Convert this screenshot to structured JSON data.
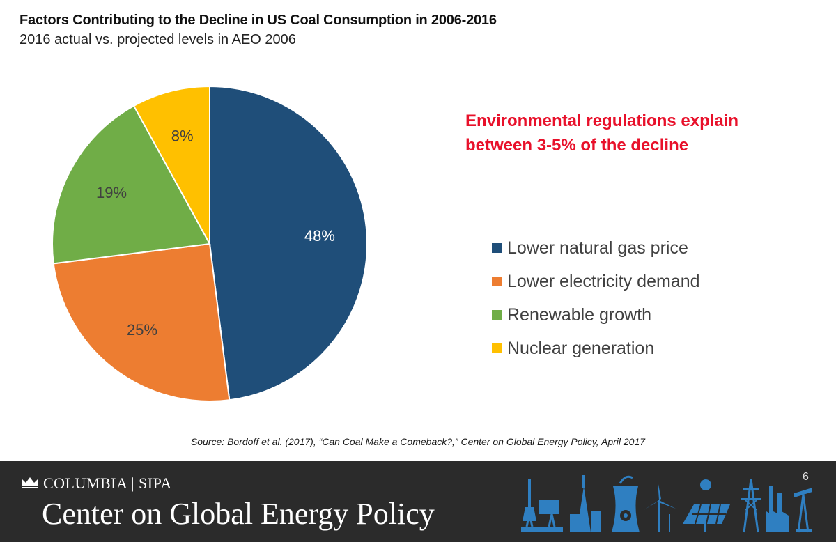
{
  "header": {
    "title": "Factors Contributing to the Decline in US Coal Consumption in 2006-2016",
    "subtitle": "2016 actual vs. projected levels in AEO 2006"
  },
  "callout": {
    "line1": "Environmental regulations explain",
    "line2": "between 3-5% of the decline"
  },
  "chart_data": {
    "type": "pie",
    "title": "Factors Contributing to the Decline in US Coal Consumption in 2006-2016",
    "subtitle": "2016 actual vs. projected levels in AEO 2006",
    "categories": [
      "Lower natural gas price",
      "Lower electricity demand",
      "Renewable growth",
      "Nuclear generation"
    ],
    "values": [
      48,
      25,
      19,
      8
    ],
    "labels": [
      "48%",
      "25%",
      "19%",
      "8%"
    ],
    "colors": [
      "#1f4e79",
      "#ed7d31",
      "#70ad47",
      "#ffc000"
    ],
    "unit": "%",
    "legend_position": "right"
  },
  "source": "Source: Bordoff et al. (2017), “Can Coal Make a Comeback?,” Center on Global Energy Policy, April 2017",
  "footer": {
    "university": "COLUMBIA | SIPA",
    "center": "Center on Global Energy Policy",
    "page_number": "6",
    "background": "#2b2b2b",
    "icon_color": "#2f7fc1",
    "icons": [
      "crown-icon",
      "oil-platform-icon",
      "tower-icon",
      "cooling-tower-icon",
      "wind-turbine-icon",
      "solar-panel-icon",
      "transmission-tower-icon",
      "factory-icon",
      "oil-pump-icon"
    ]
  }
}
